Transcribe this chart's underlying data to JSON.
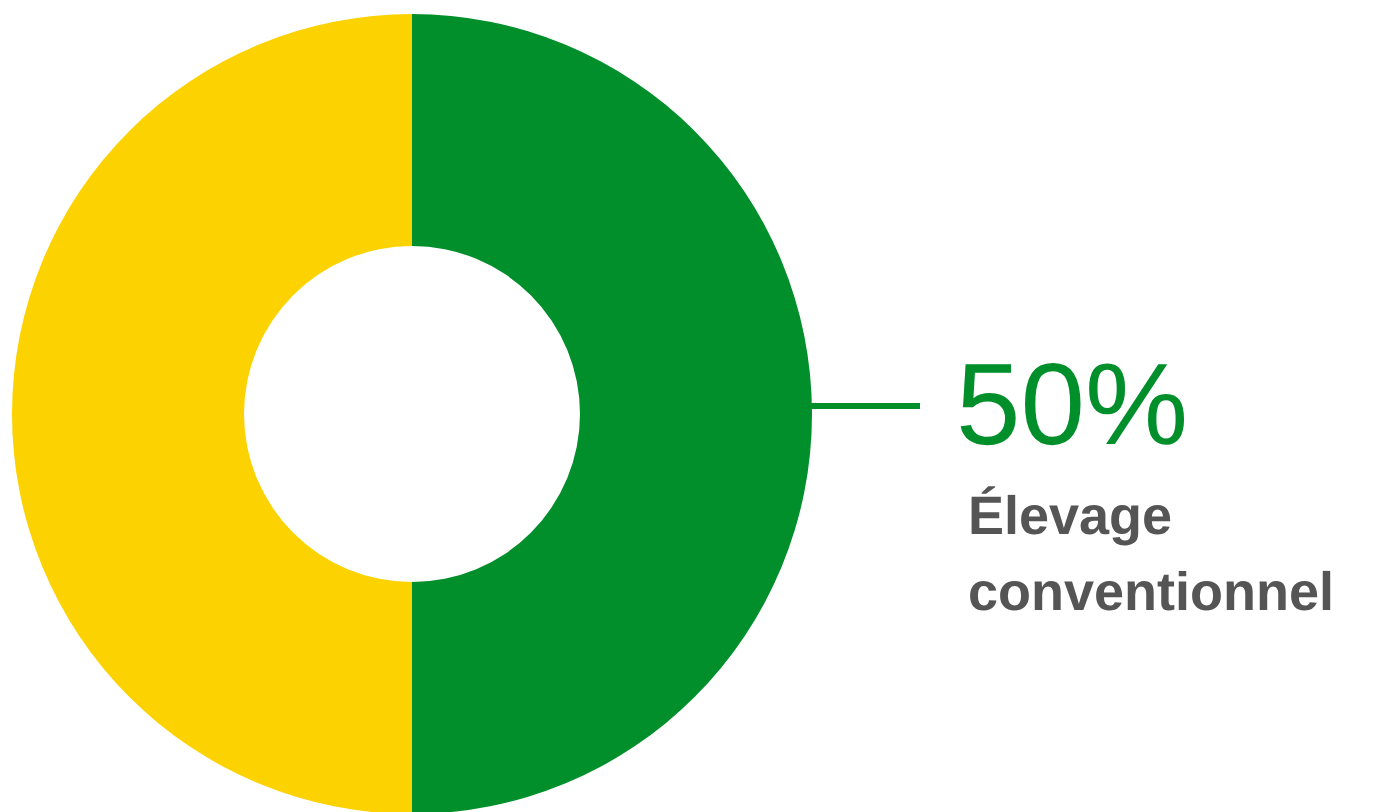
{
  "chart_data": {
    "type": "donut",
    "categories": [
      "Élevage conventionnel",
      null
    ],
    "values": [
      50,
      50
    ],
    "colors": [
      "#008f2a",
      "#fcd200"
    ],
    "value_labels": [
      "50%",
      null
    ]
  }
}
